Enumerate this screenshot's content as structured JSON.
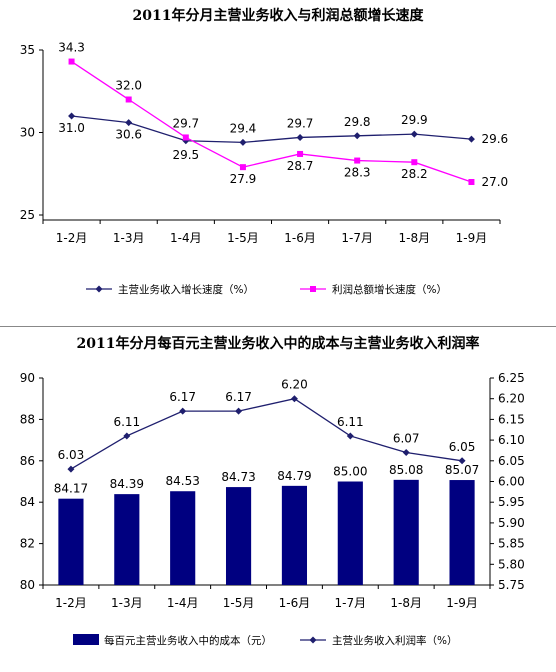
{
  "chart_data": [
    {
      "type": "line",
      "title": "2011年分月主营业务收入与利润总额增长速度",
      "categories": [
        "1-2月",
        "1-3月",
        "1-4月",
        "1-5月",
        "1-6月",
        "1-7月",
        "1-8月",
        "1-9月"
      ],
      "ylim": [
        25,
        35
      ],
      "yticks": [
        25,
        30,
        35
      ],
      "grid": false,
      "legend_position": "bottom",
      "series": [
        {
          "name": "主营业务收入增长速度（%）",
          "color": "#1f1f6e",
          "marker": "diamond",
          "values": [
            31.0,
            30.6,
            29.5,
            29.4,
            29.7,
            29.8,
            29.9,
            29.6
          ],
          "labels": [
            "31.0",
            "30.6",
            "29.5",
            "29.4",
            "29.7",
            "29.8",
            "29.9",
            "29.6"
          ]
        },
        {
          "name": "利润总额增长速度（%）",
          "color": "#ff00ff",
          "marker": "square",
          "values": [
            34.3,
            32.0,
            29.7,
            27.9,
            28.7,
            28.3,
            28.2,
            27.0
          ],
          "labels": [
            "34.3",
            "32.0",
            "29.7",
            "27.9",
            "28.7",
            "28.3",
            "28.2",
            "27.0"
          ]
        }
      ]
    },
    {
      "type": "bar",
      "title": "2011年分月每百元主营业务收入中的成本与主营业务收入利润率",
      "categories": [
        "1-2月",
        "1-3月",
        "1-4月",
        "1-5月",
        "1-6月",
        "1-7月",
        "1-8月",
        "1-9月"
      ],
      "ylim": [
        80,
        90
      ],
      "yticks": [
        80,
        82,
        84,
        86,
        88,
        90
      ],
      "y2lim": [
        5.75,
        6.25
      ],
      "y2ticks": [
        "5.75",
        "5.80",
        "5.85",
        "5.90",
        "5.95",
        "6.00",
        "6.05",
        "6.10",
        "6.15",
        "6.20",
        "6.25"
      ],
      "grid": false,
      "legend_position": "bottom",
      "series": [
        {
          "name": "每百元主营业务收入中的成本（元）",
          "type": "bar",
          "axis": "left",
          "color": "#000080",
          "values": [
            84.17,
            84.39,
            84.53,
            84.73,
            84.79,
            85.0,
            85.08,
            85.07
          ],
          "labels": [
            "84.17",
            "84.39",
            "84.53",
            "84.73",
            "84.79",
            "85.00",
            "85.08",
            "85.07"
          ]
        },
        {
          "name": "主营业务收入利润率（%）",
          "type": "line",
          "axis": "right",
          "color": "#1f1f6e",
          "marker": "diamond",
          "values": [
            6.03,
            6.11,
            6.17,
            6.17,
            6.2,
            6.11,
            6.07,
            6.05
          ],
          "labels": [
            "6.03",
            "6.11",
            "6.17",
            "6.17",
            "6.20",
            "6.11",
            "6.07",
            "6.05"
          ]
        }
      ]
    }
  ]
}
